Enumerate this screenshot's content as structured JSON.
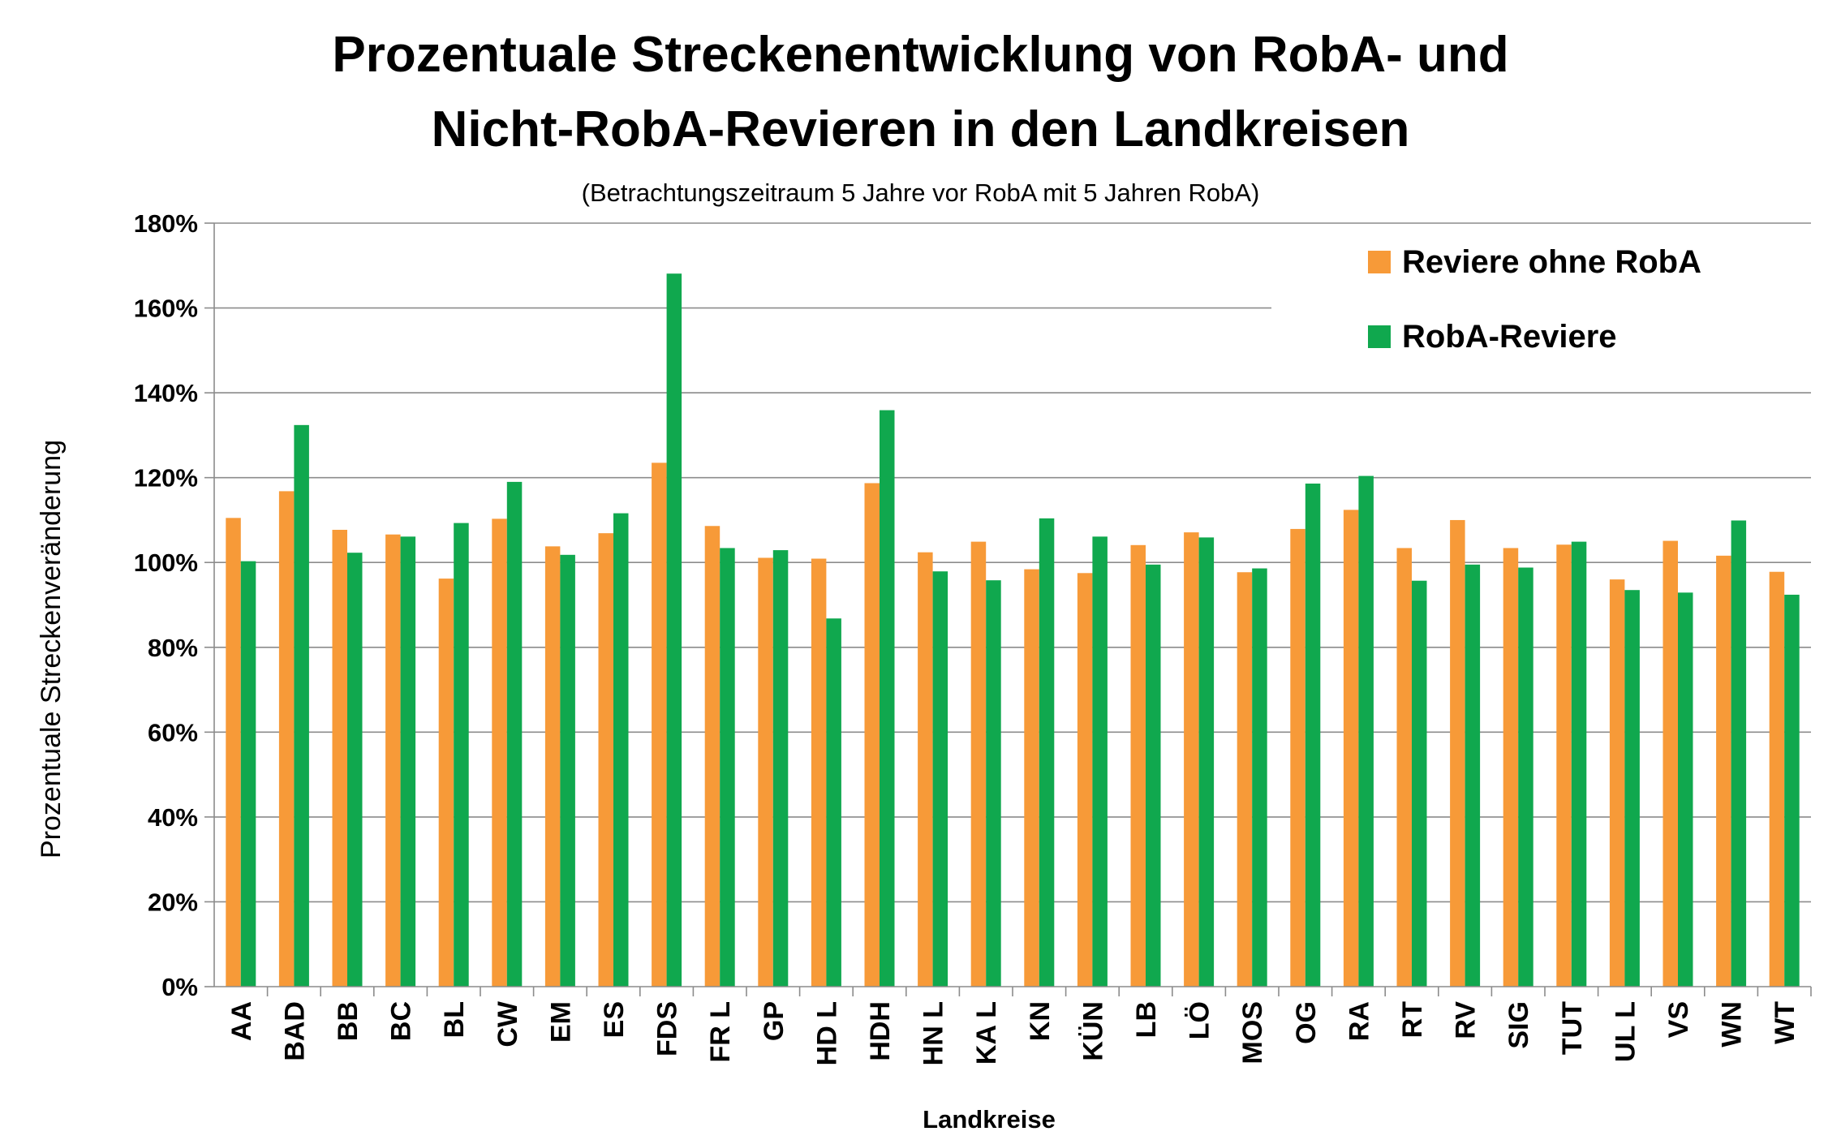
{
  "chart_data": {
    "type": "bar",
    "title_line1": "Prozentuale Streckenentwicklung von RobA- und",
    "title_line2": "Nicht-RobA-Revieren in den Landkreisen",
    "subtitle": "(Betrachtungszeitraum 5 Jahre vor RobA mit 5 Jahren RobA)",
    "xlabel": "Landkreise",
    "ylabel": "Prozentuale Streckenveränderung",
    "ylim": [
      0,
      180
    ],
    "yticks": [
      0,
      20,
      40,
      60,
      80,
      100,
      120,
      140,
      160,
      180
    ],
    "ytick_suffix": "%",
    "grid": true,
    "legend_position": "top-right",
    "categories": [
      "AA",
      "BAD",
      "BB",
      "BC",
      "BL",
      "CW",
      "EM",
      "ES",
      "FDS",
      "FR L",
      "GP",
      "HD L",
      "HDH",
      "HN L",
      "KA L",
      "KN",
      "KÜN",
      "LB",
      "LÖ",
      "MOS",
      "OG",
      "RA",
      "RT",
      "RV",
      "SIG",
      "TUT",
      "UL L",
      "VS",
      "WN",
      "WT"
    ],
    "series": [
      {
        "name": "Reviere ohne RobA",
        "color": "#F79A38",
        "values": [
          110.5,
          116.8,
          107.7,
          106.6,
          96.2,
          110.3,
          103.8,
          106.9,
          123.5,
          108.6,
          101.1,
          100.9,
          118.7,
          102.4,
          104.9,
          98.4,
          97.5,
          104.1,
          107.1,
          97.7,
          107.9,
          112.4,
          103.4,
          110.0,
          103.4,
          104.2,
          96.0,
          105.1,
          101.6,
          97.8
        ]
      },
      {
        "name": "RobA-Reviere",
        "color": "#10A84E",
        "values": [
          100.3,
          132.4,
          102.3,
          106.1,
          109.3,
          119.0,
          101.8,
          111.6,
          168.1,
          103.4,
          102.9,
          86.8,
          135.9,
          97.9,
          95.8,
          110.4,
          106.1,
          99.5,
          105.9,
          98.6,
          118.6,
          120.4,
          95.7,
          99.5,
          98.8,
          104.9,
          93.5,
          92.9,
          109.9,
          92.4
        ]
      }
    ]
  }
}
